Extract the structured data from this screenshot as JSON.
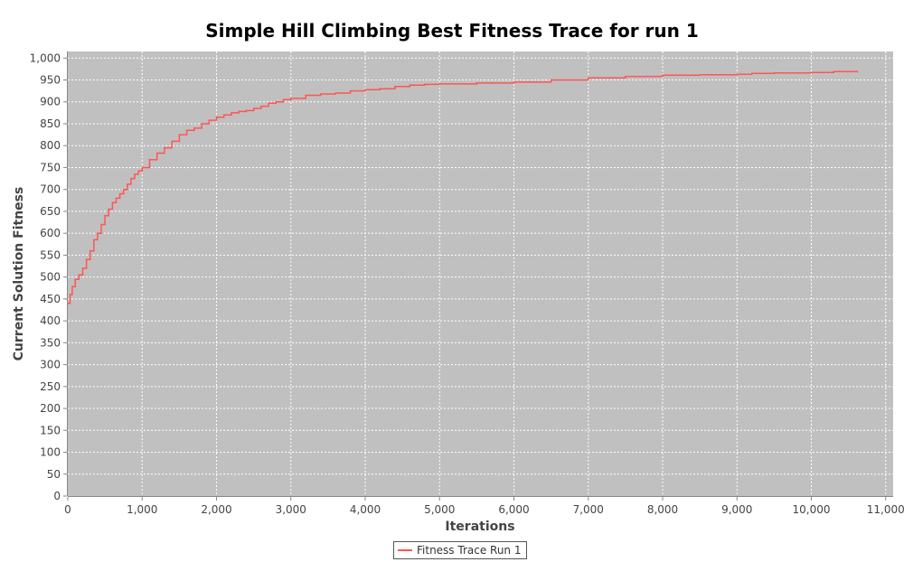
{
  "chart_data": {
    "type": "line",
    "title": "Simple Hill Climbing Best Fitness Trace for run 1",
    "xlabel": "Iterations",
    "ylabel": "Current Solution Fitness",
    "xlim": [
      0,
      11100
    ],
    "ylim": [
      0,
      1015
    ],
    "x_ticks": [
      0,
      1000,
      2000,
      3000,
      4000,
      5000,
      6000,
      7000,
      8000,
      9000,
      10000,
      11000
    ],
    "x_tick_labels": [
      "0",
      "1,000",
      "2,000",
      "3,000",
      "4,000",
      "5,000",
      "6,000",
      "7,000",
      "8,000",
      "9,000",
      "10,000",
      "11,000"
    ],
    "y_ticks": [
      0,
      50,
      100,
      150,
      200,
      250,
      300,
      350,
      400,
      450,
      500,
      550,
      600,
      650,
      700,
      750,
      800,
      850,
      900,
      950,
      1000
    ],
    "y_tick_labels": [
      "0",
      "50",
      "100",
      "150",
      "200",
      "250",
      "300",
      "350",
      "400",
      "450",
      "500",
      "550",
      "600",
      "650",
      "700",
      "750",
      "800",
      "850",
      "900",
      "950",
      "1,000"
    ],
    "grid": true,
    "legend_position": "bottom-center",
    "colors": {
      "plot_background": "#c0c0c0",
      "series": "#ff5555",
      "grid": "#ffffff"
    },
    "series": [
      {
        "name": "Fitness Trace Run 1",
        "x": [
          0,
          30,
          60,
          100,
          150,
          200,
          250,
          300,
          350,
          400,
          450,
          500,
          550,
          600,
          650,
          700,
          750,
          800,
          850,
          900,
          950,
          1000,
          1100,
          1200,
          1300,
          1400,
          1500,
          1600,
          1700,
          1800,
          1900,
          2000,
          2100,
          2200,
          2300,
          2400,
          2500,
          2600,
          2700,
          2800,
          2900,
          3000,
          3200,
          3400,
          3600,
          3800,
          4000,
          4200,
          4400,
          4600,
          4800,
          5000,
          5500,
          6000,
          6500,
          7000,
          7500,
          8000,
          8500,
          9000,
          9200,
          9500,
          10000,
          10300,
          10620
        ],
        "y": [
          440,
          460,
          478,
          495,
          505,
          520,
          540,
          560,
          585,
          600,
          620,
          640,
          655,
          670,
          680,
          690,
          700,
          712,
          725,
          735,
          742,
          750,
          768,
          783,
          795,
          810,
          825,
          835,
          840,
          850,
          858,
          865,
          870,
          875,
          878,
          880,
          885,
          890,
          897,
          900,
          905,
          908,
          915,
          918,
          920,
          925,
          928,
          930,
          935,
          938,
          940,
          941,
          943,
          945,
          950,
          955,
          958,
          961,
          962,
          963,
          965,
          966,
          967,
          969,
          968
        ]
      }
    ]
  }
}
